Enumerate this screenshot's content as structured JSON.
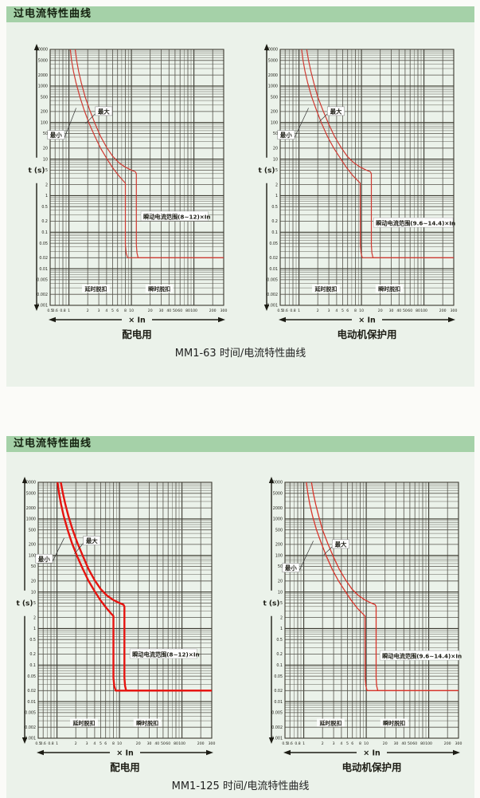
{
  "colors": {
    "header_bg": "#a5d1a8",
    "panel_bg": "#ebf2ea",
    "grid": "#55524a",
    "grid_major": "#3a382f",
    "text": "#1c1c14",
    "label_box_bg": "#ffffff"
  },
  "panels": [
    {
      "header": "过电流特性曲线",
      "caption": "MM1-63 时间/电流特性曲线"
    },
    {
      "header": "过电流特性曲线",
      "caption": "MM1-125 时间/电流特性曲线"
    }
  ],
  "chart_data": [
    {
      "type": "line",
      "title": "配电用",
      "xlabel": "× In",
      "ylabel": "t (s)",
      "x_range": [
        0.5,
        300
      ],
      "y_range": [
        0.001,
        10000
      ],
      "x_ticks": [
        0.5,
        0.6,
        0.8,
        1,
        2,
        3,
        4,
        5,
        6,
        8,
        10,
        20,
        30,
        40,
        50,
        60,
        80,
        100,
        200,
        300
      ],
      "y_ticks": [
        10000,
        5000,
        2000,
        1000,
        500,
        200,
        100,
        50,
        20,
        10,
        5,
        2,
        1,
        0.5,
        0.2,
        0.1,
        0.05,
        0.02,
        0.01,
        0.005,
        0.002,
        0.001
      ],
      "curve_color": "#cf3a32",
      "curve_width": 1.2,
      "series": [
        {
          "name": "最小",
          "points": [
            [
              1.05,
              10000
            ],
            [
              1.1,
              5000
            ],
            [
              1.18,
              2500
            ],
            [
              1.3,
              1200
            ],
            [
              1.5,
              500
            ],
            [
              1.75,
              220
            ],
            [
              2.1,
              95
            ],
            [
              2.6,
              42
            ],
            [
              3.2,
              20
            ],
            [
              4.0,
              10.5
            ],
            [
              5.0,
              5.8
            ],
            [
              6.2,
              3.6
            ],
            [
              7.3,
              2.6
            ],
            [
              8.0,
              2.2
            ],
            [
              8.0,
              0.045
            ],
            [
              8.25,
              0.027
            ],
            [
              8.7,
              0.02
            ],
            [
              300,
              0.02
            ]
          ]
        },
        {
          "name": "最大",
          "points": [
            [
              1.26,
              10000
            ],
            [
              1.33,
              5000
            ],
            [
              1.43,
              2500
            ],
            [
              1.58,
              1200
            ],
            [
              1.82,
              500
            ],
            [
              2.15,
              220
            ],
            [
              2.6,
              95
            ],
            [
              3.2,
              42
            ],
            [
              4.0,
              21
            ],
            [
              5.0,
              12
            ],
            [
              6.3,
              8
            ],
            [
              8.0,
              6
            ],
            [
              10.0,
              5
            ],
            [
              11.6,
              4.5
            ],
            [
              12.0,
              4.0
            ],
            [
              12.0,
              0.045
            ],
            [
              12.3,
              0.027
            ],
            [
              12.8,
              0.02
            ],
            [
              300,
              0.02
            ]
          ]
        }
      ],
      "labels": {
        "max": {
          "text": "最大",
          "x": 3.6,
          "y": 200,
          "to": [
            1.85,
            95
          ]
        },
        "min": {
          "text": "最小",
          "x": 0.62,
          "y": 45,
          "to": [
            1.3,
            250
          ]
        },
        "range": {
          "text": "瞬动电流范围(8~12)×In",
          "x": 15.5,
          "y": 0.27
        },
        "delay": {
          "text": "延时脱扣",
          "x": 2.7,
          "y": 0.0028
        },
        "instant": {
          "text": "瞬时脱扣",
          "x": 28,
          "y": 0.0028
        }
      }
    },
    {
      "type": "line",
      "title": "电动机保护用",
      "xlabel": "× In",
      "ylabel": "t (s)",
      "x_range": [
        0.5,
        300
      ],
      "y_range": [
        0.001,
        10000
      ],
      "x_ticks": [
        0.5,
        0.6,
        0.8,
        1,
        2,
        3,
        4,
        5,
        6,
        8,
        10,
        20,
        30,
        40,
        50,
        60,
        80,
        100,
        200,
        300
      ],
      "y_ticks": [
        10000,
        5000,
        2000,
        1000,
        500,
        200,
        100,
        50,
        20,
        10,
        5,
        2,
        1,
        0.5,
        0.2,
        0.1,
        0.05,
        0.02,
        0.01,
        0.005,
        0.002,
        0.001
      ],
      "curve_color": "#cf3a32",
      "curve_width": 1.2,
      "series": [
        {
          "name": "最小",
          "points": [
            [
              1.1,
              10000
            ],
            [
              1.16,
              5000
            ],
            [
              1.25,
              2500
            ],
            [
              1.38,
              1200
            ],
            [
              1.6,
              500
            ],
            [
              1.9,
              220
            ],
            [
              2.3,
              95
            ],
            [
              2.85,
              42
            ],
            [
              3.6,
              20
            ],
            [
              4.6,
              10.5
            ],
            [
              5.8,
              5.8
            ],
            [
              7.2,
              3.6
            ],
            [
              8.7,
              2.6
            ],
            [
              9.55,
              2.2
            ],
            [
              9.6,
              0.045
            ],
            [
              9.85,
              0.027
            ],
            [
              10.3,
              0.02
            ],
            [
              300,
              0.02
            ]
          ]
        },
        {
          "name": "最大",
          "points": [
            [
              1.33,
              10000
            ],
            [
              1.42,
              5000
            ],
            [
              1.55,
              2500
            ],
            [
              1.73,
              1200
            ],
            [
              2.0,
              500
            ],
            [
              2.4,
              220
            ],
            [
              2.95,
              95
            ],
            [
              3.7,
              42
            ],
            [
              4.7,
              21
            ],
            [
              5.9,
              12
            ],
            [
              7.5,
              8
            ],
            [
              9.6,
              6
            ],
            [
              12.0,
              5
            ],
            [
              13.9,
              4.5
            ],
            [
              14.4,
              4.0
            ],
            [
              14.4,
              0.045
            ],
            [
              14.7,
              0.027
            ],
            [
              15.3,
              0.02
            ],
            [
              300,
              0.02
            ]
          ]
        }
      ],
      "labels": {
        "max": {
          "text": "最大",
          "x": 3.9,
          "y": 200,
          "to": [
            2.1,
            105
          ]
        },
        "min": {
          "text": "最小",
          "x": 0.62,
          "y": 45,
          "to": [
            1.42,
            250
          ]
        },
        "range": {
          "text": "瞬动电流范围(9.6~14.4)×In",
          "x": 17,
          "y": 0.18
        },
        "delay": {
          "text": "延时脱扣",
          "x": 2.7,
          "y": 0.0028
        },
        "instant": {
          "text": "瞬时脱扣",
          "x": 28,
          "y": 0.0028
        }
      }
    },
    {
      "type": "line",
      "title": "配电用",
      "xlabel": "× In",
      "ylabel": "t (s)",
      "x_range": [
        0.5,
        300
      ],
      "y_range": [
        0.001,
        10000
      ],
      "x_ticks": [
        0.5,
        0.6,
        0.8,
        1,
        2,
        3,
        4,
        5,
        6,
        8,
        10,
        20,
        30,
        40,
        50,
        60,
        80,
        100,
        200,
        300
      ],
      "y_ticks": [
        10000,
        5000,
        2000,
        1000,
        500,
        200,
        100,
        50,
        20,
        10,
        5,
        2,
        1,
        0.5,
        0.2,
        0.1,
        0.05,
        0.02,
        0.01,
        0.005,
        0.002,
        0.001
      ],
      "curve_color": "#e61410",
      "curve_width": 2.4,
      "series": [
        {
          "name": "最小",
          "points": [
            [
              1.02,
              10000
            ],
            [
              1.08,
              5000
            ],
            [
              1.16,
              2500
            ],
            [
              1.28,
              1200
            ],
            [
              1.48,
              500
            ],
            [
              1.73,
              220
            ],
            [
              2.1,
              95
            ],
            [
              2.6,
              42
            ],
            [
              3.2,
              20
            ],
            [
              4.0,
              10.5
            ],
            [
              5.0,
              5.8
            ],
            [
              6.2,
              3.6
            ],
            [
              7.3,
              2.6
            ],
            [
              8.0,
              2.2
            ],
            [
              8.0,
              0.045
            ],
            [
              8.25,
              0.027
            ],
            [
              8.7,
              0.02
            ],
            [
              300,
              0.02
            ]
          ]
        },
        {
          "name": "最大",
          "points": [
            [
              1.15,
              10000
            ],
            [
              1.24,
              5000
            ],
            [
              1.36,
              2500
            ],
            [
              1.52,
              1200
            ],
            [
              1.78,
              500
            ],
            [
              2.12,
              220
            ],
            [
              2.6,
              95
            ],
            [
              3.2,
              42
            ],
            [
              4.0,
              21
            ],
            [
              5.0,
              12
            ],
            [
              6.3,
              8
            ],
            [
              8.0,
              6
            ],
            [
              10.0,
              5
            ],
            [
              11.6,
              4.5
            ],
            [
              12.0,
              4.0
            ],
            [
              12.0,
              0.045
            ],
            [
              12.3,
              0.027
            ],
            [
              12.8,
              0.02
            ],
            [
              300,
              0.02
            ]
          ]
        }
      ],
      "labels": {
        "max": {
          "text": "最大",
          "x": 3.6,
          "y": 250,
          "to": [
            1.9,
            110
          ]
        },
        "min": {
          "text": "最小",
          "x": 0.62,
          "y": 80,
          "to": [
            1.3,
            300
          ]
        },
        "range": {
          "text": "瞬动电流范围(8~12)×In",
          "x": 16,
          "y": 0.2
        },
        "delay": {
          "text": "延时脱扣",
          "x": 2.7,
          "y": 0.0026
        },
        "instant": {
          "text": "瞬时脱扣",
          "x": 28,
          "y": 0.0026
        }
      }
    },
    {
      "type": "line",
      "title": "电动机保护用",
      "xlabel": "× In",
      "ylabel": "t (s)",
      "x_range": [
        0.5,
        300
      ],
      "y_range": [
        0.001,
        10000
      ],
      "x_ticks": [
        0.5,
        0.6,
        0.8,
        1,
        2,
        3,
        4,
        5,
        6,
        8,
        10,
        20,
        30,
        40,
        50,
        60,
        80,
        100,
        200,
        300
      ],
      "y_ticks": [
        10000,
        5000,
        2000,
        1000,
        500,
        200,
        100,
        50,
        20,
        10,
        5,
        2,
        1,
        0.5,
        0.2,
        0.1,
        0.05,
        0.02,
        0.01,
        0.005,
        0.002,
        0.001
      ],
      "curve_color": "#d8352b",
      "curve_width": 1.3,
      "series": [
        {
          "name": "最小",
          "points": [
            [
              1.1,
              10000
            ],
            [
              1.16,
              5000
            ],
            [
              1.25,
              2500
            ],
            [
              1.38,
              1200
            ],
            [
              1.6,
              500
            ],
            [
              1.9,
              220
            ],
            [
              2.3,
              95
            ],
            [
              2.85,
              42
            ],
            [
              3.6,
              20
            ],
            [
              4.6,
              10.5
            ],
            [
              5.8,
              5.8
            ],
            [
              7.2,
              3.6
            ],
            [
              8.7,
              2.6
            ],
            [
              9.55,
              2.2
            ],
            [
              9.6,
              0.045
            ],
            [
              9.85,
              0.027
            ],
            [
              10.3,
              0.02
            ],
            [
              300,
              0.02
            ]
          ]
        },
        {
          "name": "最大",
          "points": [
            [
              1.33,
              10000
            ],
            [
              1.42,
              5000
            ],
            [
              1.55,
              2500
            ],
            [
              1.73,
              1200
            ],
            [
              2.0,
              500
            ],
            [
              2.4,
              220
            ],
            [
              2.95,
              95
            ],
            [
              3.7,
              42
            ],
            [
              4.7,
              21
            ],
            [
              5.9,
              12
            ],
            [
              7.5,
              8
            ],
            [
              9.6,
              6
            ],
            [
              12.0,
              5
            ],
            [
              13.9,
              4.5
            ],
            [
              14.4,
              4.0
            ],
            [
              14.4,
              0.045
            ],
            [
              14.7,
              0.027
            ],
            [
              15.3,
              0.02
            ],
            [
              300,
              0.02
            ]
          ]
        }
      ],
      "labels": {
        "max": {
          "text": "最大",
          "x": 3.9,
          "y": 200,
          "to": [
            2.1,
            105
          ]
        },
        "min": {
          "text": "最小",
          "x": 0.62,
          "y": 45,
          "to": [
            1.42,
            250
          ]
        },
        "range": {
          "text": "瞬动电流范围(9.6~14.4)×In",
          "x": 18,
          "y": 0.18
        },
        "delay": {
          "text": "延时脱扣",
          "x": 2.7,
          "y": 0.0026
        },
        "instant": {
          "text": "瞬时脱扣",
          "x": 28,
          "y": 0.0026
        }
      }
    }
  ]
}
